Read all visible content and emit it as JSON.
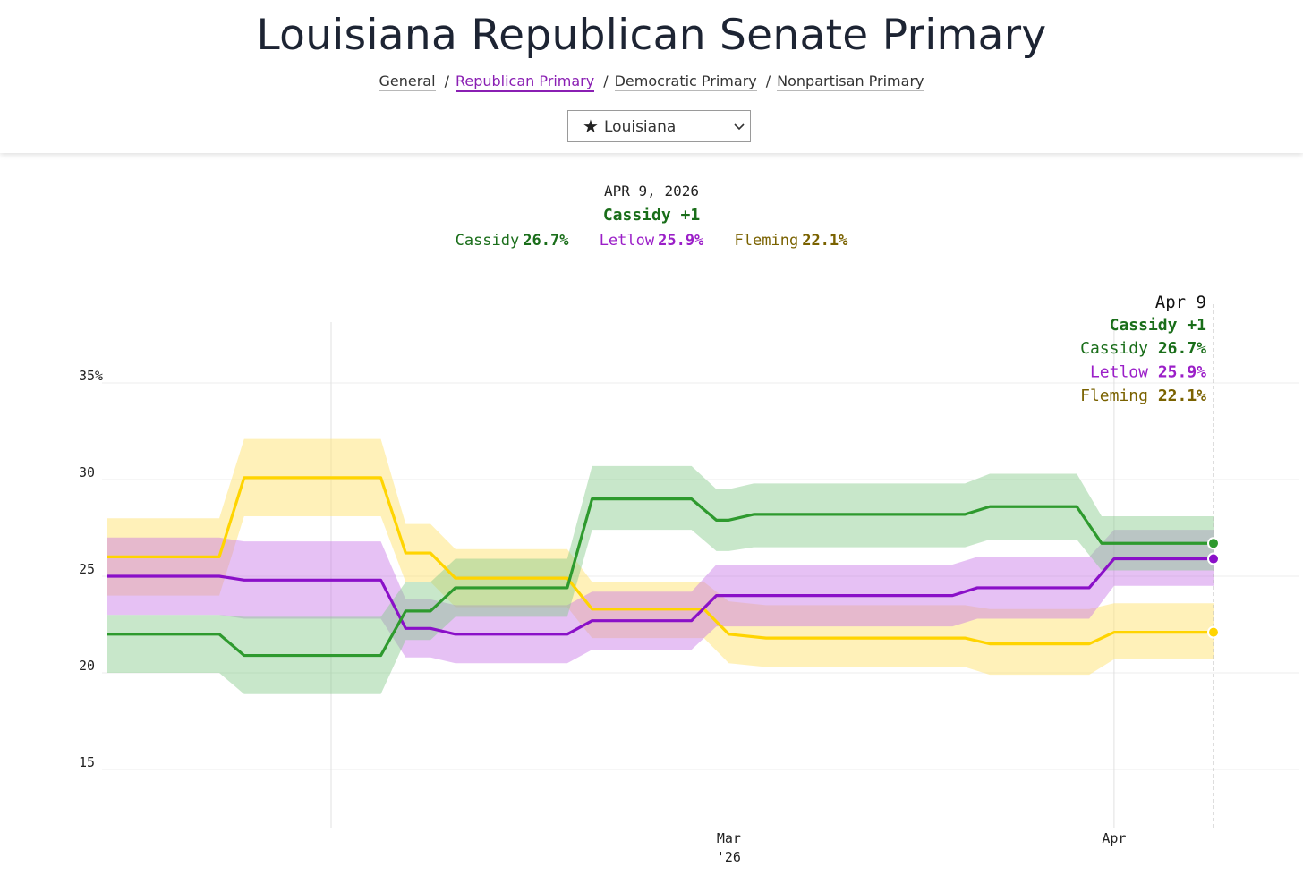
{
  "header": {
    "title": "Louisiana Republican Senate Primary",
    "tabs": [
      {
        "label": "General",
        "active": false
      },
      {
        "label": "Republican Primary",
        "active": true
      },
      {
        "label": "Democratic Primary",
        "active": false
      },
      {
        "label": "Nonpartisan Primary",
        "active": false
      }
    ],
    "state_select": {
      "icon": "star-icon",
      "star": "★",
      "value": "Louisiana"
    }
  },
  "summary": {
    "date": "APR 9, 2026",
    "lead": "Cassidy +1",
    "candidates": [
      {
        "name": "Cassidy",
        "value": "26.7%"
      },
      {
        "name": "Letlow",
        "value": "25.9%"
      },
      {
        "name": "Fleming",
        "value": "22.1%"
      }
    ]
  },
  "colors": {
    "Cassidy": "#2e9a2e",
    "Cassidy_text": "#1a6e1a",
    "Letlow": "#8a10c8",
    "Letlow_text": "#9b1fc8",
    "Fleming": "#ffd400",
    "Fleming_text": "#7a6200"
  },
  "chart_data": {
    "type": "line",
    "title": "Louisiana Republican Senate Primary",
    "ylabel": "%",
    "ylim": [
      12,
      38
    ],
    "yticks": [
      {
        "value": 35,
        "label": "35%"
      },
      {
        "value": 30,
        "label": "30"
      },
      {
        "value": 25,
        "label": "25"
      },
      {
        "value": 20,
        "label": "20"
      },
      {
        "value": 15,
        "label": "15"
      }
    ],
    "xlim": [
      "2026-01-10",
      "2026-04-09"
    ],
    "xticks": [
      {
        "date": "2026-03-01",
        "label": "Mar",
        "sublabel": "'26"
      },
      {
        "date": "2026-04-01",
        "label": "Apr",
        "sublabel": ""
      }
    ],
    "vlines": [
      "2026-01-28",
      "2026-04-01"
    ],
    "hover": {
      "date": "2026-04-09",
      "label": "Apr 9",
      "lead": "Cassidy +1",
      "rows": [
        {
          "name": "Cassidy",
          "value": "26.7%"
        },
        {
          "name": "Letlow",
          "value": "25.9%"
        },
        {
          "name": "Fleming",
          "value": "22.1%"
        }
      ]
    },
    "series": [
      {
        "name": "Fleming",
        "points": [
          [
            "2026-01-10",
            26.0
          ],
          [
            "2026-01-19",
            26.0
          ],
          [
            "2026-01-21",
            30.1
          ],
          [
            "2026-02-01",
            30.1
          ],
          [
            "2026-02-03",
            26.2
          ],
          [
            "2026-02-05",
            26.2
          ],
          [
            "2026-02-07",
            24.9
          ],
          [
            "2026-02-16",
            24.9
          ],
          [
            "2026-02-18",
            23.3
          ],
          [
            "2026-02-27",
            23.3
          ],
          [
            "2026-03-01",
            22.0
          ],
          [
            "2026-03-04",
            21.8
          ],
          [
            "2026-03-20",
            21.8
          ],
          [
            "2026-03-22",
            21.5
          ],
          [
            "2026-03-30",
            21.5
          ],
          [
            "2026-04-01",
            22.1
          ],
          [
            "2026-04-09",
            22.1
          ]
        ],
        "upper": [
          [
            "2026-01-10",
            28.0
          ],
          [
            "2026-01-19",
            28.0
          ],
          [
            "2026-01-21",
            32.1
          ],
          [
            "2026-02-01",
            32.1
          ],
          [
            "2026-02-03",
            27.7
          ],
          [
            "2026-02-05",
            27.7
          ],
          [
            "2026-02-07",
            26.4
          ],
          [
            "2026-02-16",
            26.4
          ],
          [
            "2026-02-18",
            24.7
          ],
          [
            "2026-02-27",
            24.7
          ],
          [
            "2026-03-01",
            23.7
          ],
          [
            "2026-03-04",
            23.5
          ],
          [
            "2026-03-20",
            23.5
          ],
          [
            "2026-03-22",
            23.3
          ],
          [
            "2026-03-30",
            23.3
          ],
          [
            "2026-04-01",
            23.6
          ],
          [
            "2026-04-09",
            23.6
          ]
        ],
        "lower": [
          [
            "2026-01-10",
            24.0
          ],
          [
            "2026-01-19",
            24.0
          ],
          [
            "2026-01-21",
            28.1
          ],
          [
            "2026-02-01",
            28.1
          ],
          [
            "2026-02-03",
            24.7
          ],
          [
            "2026-02-05",
            24.7
          ],
          [
            "2026-02-07",
            23.4
          ],
          [
            "2026-02-16",
            23.4
          ],
          [
            "2026-02-18",
            21.8
          ],
          [
            "2026-02-27",
            21.8
          ],
          [
            "2026-03-01",
            20.5
          ],
          [
            "2026-03-04",
            20.3
          ],
          [
            "2026-03-20",
            20.3
          ],
          [
            "2026-03-22",
            19.9
          ],
          [
            "2026-03-30",
            19.9
          ],
          [
            "2026-04-01",
            20.7
          ],
          [
            "2026-04-09",
            20.7
          ]
        ]
      },
      {
        "name": "Letlow",
        "points": [
          [
            "2026-01-10",
            25.0
          ],
          [
            "2026-01-19",
            25.0
          ],
          [
            "2026-01-21",
            24.8
          ],
          [
            "2026-02-01",
            24.8
          ],
          [
            "2026-02-03",
            22.3
          ],
          [
            "2026-02-05",
            22.3
          ],
          [
            "2026-02-07",
            22.0
          ],
          [
            "2026-02-16",
            22.0
          ],
          [
            "2026-02-18",
            22.7
          ],
          [
            "2026-02-26",
            22.7
          ],
          [
            "2026-02-28",
            24.0
          ],
          [
            "2026-03-19",
            24.0
          ],
          [
            "2026-03-21",
            24.4
          ],
          [
            "2026-03-30",
            24.4
          ],
          [
            "2026-04-01",
            25.9
          ],
          [
            "2026-04-09",
            25.9
          ]
        ],
        "upper": [
          [
            "2026-01-10",
            27.0
          ],
          [
            "2026-01-19",
            27.0
          ],
          [
            "2026-01-21",
            26.8
          ],
          [
            "2026-02-01",
            26.8
          ],
          [
            "2026-02-03",
            23.8
          ],
          [
            "2026-02-05",
            23.8
          ],
          [
            "2026-02-07",
            23.5
          ],
          [
            "2026-02-16",
            23.5
          ],
          [
            "2026-02-18",
            24.2
          ],
          [
            "2026-02-26",
            24.2
          ],
          [
            "2026-02-28",
            25.6
          ],
          [
            "2026-03-19",
            25.6
          ],
          [
            "2026-03-21",
            26.0
          ],
          [
            "2026-03-30",
            26.0
          ],
          [
            "2026-04-01",
            27.4
          ],
          [
            "2026-04-09",
            27.4
          ]
        ],
        "lower": [
          [
            "2026-01-10",
            23.0
          ],
          [
            "2026-01-19",
            23.0
          ],
          [
            "2026-01-21",
            22.8
          ],
          [
            "2026-02-01",
            22.8
          ],
          [
            "2026-02-03",
            20.8
          ],
          [
            "2026-02-05",
            20.8
          ],
          [
            "2026-02-07",
            20.5
          ],
          [
            "2026-02-16",
            20.5
          ],
          [
            "2026-02-18",
            21.2
          ],
          [
            "2026-02-26",
            21.2
          ],
          [
            "2026-02-28",
            22.4
          ],
          [
            "2026-03-19",
            22.4
          ],
          [
            "2026-03-21",
            22.8
          ],
          [
            "2026-03-30",
            22.8
          ],
          [
            "2026-04-01",
            24.5
          ],
          [
            "2026-04-09",
            24.5
          ]
        ]
      },
      {
        "name": "Cassidy",
        "points": [
          [
            "2026-01-10",
            22.0
          ],
          [
            "2026-01-19",
            22.0
          ],
          [
            "2026-01-21",
            20.9
          ],
          [
            "2026-02-01",
            20.9
          ],
          [
            "2026-02-03",
            23.2
          ],
          [
            "2026-02-05",
            23.2
          ],
          [
            "2026-02-07",
            24.4
          ],
          [
            "2026-02-16",
            24.4
          ],
          [
            "2026-02-18",
            29.0
          ],
          [
            "2026-02-26",
            29.0
          ],
          [
            "2026-02-28",
            27.9
          ],
          [
            "2026-03-01",
            27.9
          ],
          [
            "2026-03-03",
            28.2
          ],
          [
            "2026-03-20",
            28.2
          ],
          [
            "2026-03-22",
            28.6
          ],
          [
            "2026-03-29",
            28.6
          ],
          [
            "2026-03-31",
            26.7
          ],
          [
            "2026-04-09",
            26.7
          ]
        ],
        "upper": [
          [
            "2026-01-10",
            23.0
          ],
          [
            "2026-01-19",
            23.0
          ],
          [
            "2026-01-21",
            22.9
          ],
          [
            "2026-02-01",
            22.9
          ],
          [
            "2026-02-03",
            24.7
          ],
          [
            "2026-02-05",
            24.7
          ],
          [
            "2026-02-07",
            25.9
          ],
          [
            "2026-02-16",
            25.9
          ],
          [
            "2026-02-18",
            30.7
          ],
          [
            "2026-02-26",
            30.7
          ],
          [
            "2026-02-28",
            29.5
          ],
          [
            "2026-03-01",
            29.5
          ],
          [
            "2026-03-03",
            29.8
          ],
          [
            "2026-03-20",
            29.8
          ],
          [
            "2026-03-22",
            30.3
          ],
          [
            "2026-03-29",
            30.3
          ],
          [
            "2026-03-31",
            28.1
          ],
          [
            "2026-04-09",
            28.1
          ]
        ],
        "lower": [
          [
            "2026-01-10",
            20.0
          ],
          [
            "2026-01-19",
            20.0
          ],
          [
            "2026-01-21",
            18.9
          ],
          [
            "2026-02-01",
            18.9
          ],
          [
            "2026-02-03",
            21.7
          ],
          [
            "2026-02-05",
            21.7
          ],
          [
            "2026-02-07",
            22.9
          ],
          [
            "2026-02-16",
            22.9
          ],
          [
            "2026-02-18",
            27.4
          ],
          [
            "2026-02-26",
            27.4
          ],
          [
            "2026-02-28",
            26.3
          ],
          [
            "2026-03-01",
            26.3
          ],
          [
            "2026-03-03",
            26.5
          ],
          [
            "2026-03-20",
            26.5
          ],
          [
            "2026-03-22",
            26.9
          ],
          [
            "2026-03-29",
            26.9
          ],
          [
            "2026-03-31",
            25.3
          ],
          [
            "2026-04-09",
            25.3
          ]
        ]
      }
    ]
  }
}
